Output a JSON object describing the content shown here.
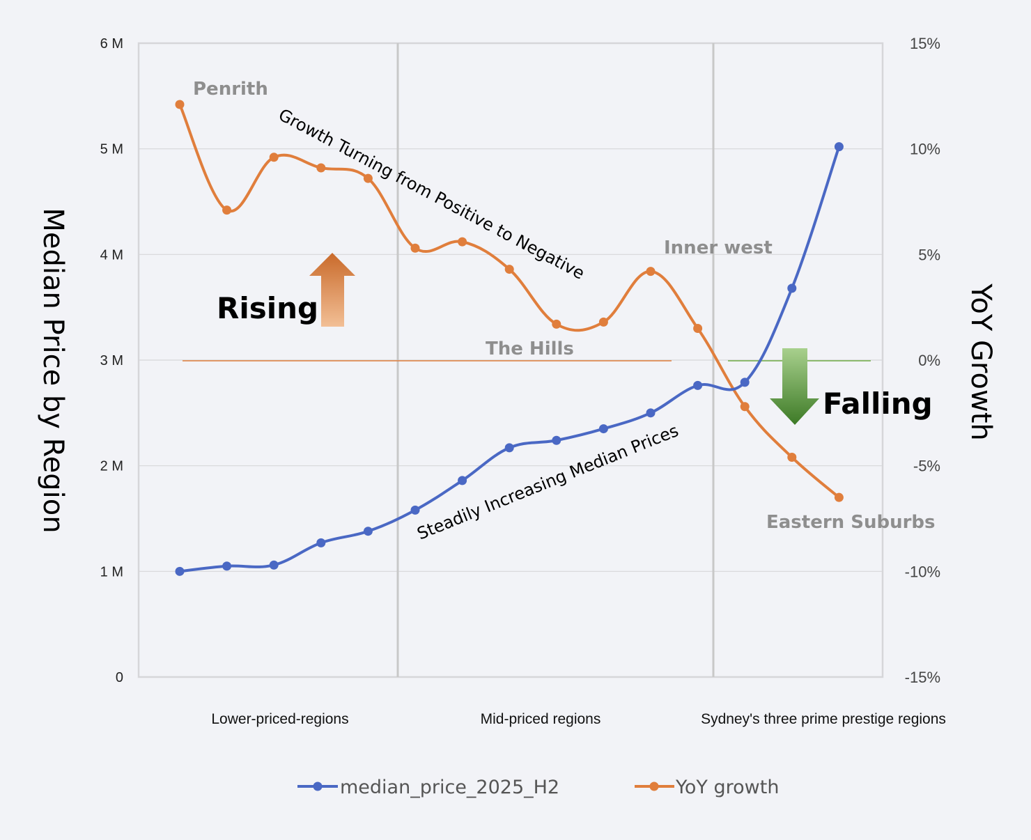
{
  "colors": {
    "price": "#4a68c4",
    "growth": "#e07e3c",
    "grid": "#d6d6d9",
    "divider": "#c8c8c8",
    "rising_top": "#c96a2a",
    "rising_bottom": "#f2bf96",
    "falling_top": "#a8d08d",
    "falling_bottom": "#3d7a26",
    "zero_line_orange": "#e07e3c",
    "zero_line_green": "#70ad47"
  },
  "chart_data": {
    "type": "line",
    "x": [
      1,
      2,
      3,
      4,
      5,
      6,
      7,
      8,
      9,
      10,
      11,
      12,
      13,
      14,
      15
    ],
    "series": [
      {
        "name": "median_price_2025_H2",
        "axis": "left",
        "values": [
          1.0,
          1.05,
          1.06,
          1.27,
          1.38,
          1.58,
          1.86,
          2.17,
          2.24,
          2.35,
          2.5,
          2.76,
          2.79,
          3.68,
          5.02
        ]
      },
      {
        "name": "YoY growth",
        "axis": "right",
        "values": [
          12.1,
          7.1,
          9.6,
          9.1,
          8.6,
          5.3,
          5.6,
          4.3,
          1.7,
          1.8,
          4.2,
          1.5,
          -2.2,
          -4.6,
          -6.5
        ]
      }
    ],
    "y_left": {
      "title": "Median Price by Region",
      "range": [
        0,
        6
      ],
      "ticks": [
        "0",
        "1 M",
        "2 M",
        "3 M",
        "4 M",
        "5 M",
        "6 M"
      ]
    },
    "y_right": {
      "title": "YoY Growth",
      "range": [
        -15,
        15
      ],
      "ticks": [
        "-15%",
        "-10%",
        "-5%",
        "0%",
        "5%",
        "10%",
        "15%"
      ]
    },
    "categories": [
      "Lower-priced-regions",
      "Mid-priced regions",
      "Sydney's three prime prestige regions"
    ],
    "region_labels": [
      "Penrith",
      "The Hills",
      "Inner west",
      "Eastern Suburbs"
    ],
    "annotations": {
      "growth": "Growth Turning from Positive to Negative",
      "price": "Steadily Increasing Median Prices",
      "rising": "Rising",
      "falling": "Falling"
    },
    "grid": true,
    "legend_position": "bottom"
  }
}
